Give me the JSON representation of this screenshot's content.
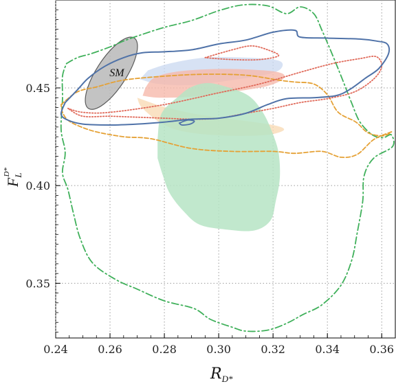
{
  "chart_data": {
    "type": "contour",
    "title": "",
    "xlabel": "R",
    "xlabel_sub": "D*",
    "ylabel": "F",
    "ylabel_sup": "D*",
    "ylabel_sub": "L",
    "xlim": [
      0.24,
      0.365
    ],
    "ylim": [
      0.322,
      0.495
    ],
    "x_ticks": [
      "0.24",
      "0.26",
      "0.28",
      "0.30",
      "0.32",
      "0.34",
      "0.36"
    ],
    "y_ticks": [
      "0.35",
      "0.40",
      "0.45"
    ],
    "grid": true,
    "annotations": [
      {
        "text": "SM",
        "x": 0.2625,
        "y": 0.456
      }
    ],
    "colors": {
      "blue": "#4f72a8",
      "red": "#e06a5a",
      "orange": "#e5a135",
      "green": "#3fb05a",
      "grey_fill": "#b8b8b8",
      "grey_stroke": "#5a5a5a",
      "fill_blue": "#c9d8f0",
      "fill_red": "#f6b9ab",
      "fill_orange": "#f8d8b0",
      "fill_green": "#b6e4c4"
    },
    "regions": [
      {
        "kind": "fill",
        "color": "fill_blue",
        "opacity": 0.75,
        "points": [
          [
            0.274,
            0.459
          ],
          [
            0.282,
            0.4625
          ],
          [
            0.295,
            0.4655
          ],
          [
            0.31,
            0.4655
          ],
          [
            0.322,
            0.464
          ],
          [
            0.323,
            0.46
          ],
          [
            0.318,
            0.457
          ],
          [
            0.305,
            0.454
          ],
          [
            0.29,
            0.4515
          ],
          [
            0.278,
            0.452
          ],
          [
            0.271,
            0.4545
          ]
        ]
      },
      {
        "kind": "fill",
        "color": "fill_red",
        "opacity": 0.8,
        "points": [
          [
            0.273,
            0.45
          ],
          [
            0.276,
            0.455
          ],
          [
            0.283,
            0.458
          ],
          [
            0.295,
            0.4595
          ],
          [
            0.31,
            0.4595
          ],
          [
            0.322,
            0.458
          ],
          [
            0.324,
            0.455
          ],
          [
            0.318,
            0.451
          ],
          [
            0.305,
            0.448
          ],
          [
            0.29,
            0.4455
          ],
          [
            0.278,
            0.445
          ],
          [
            0.272,
            0.446
          ]
        ]
      },
      {
        "kind": "fill",
        "color": "fill_orange",
        "opacity": 0.75,
        "points": [
          [
            0.27,
            0.445
          ],
          [
            0.272,
            0.4395
          ],
          [
            0.28,
            0.431
          ],
          [
            0.29,
            0.427
          ],
          [
            0.305,
            0.4255
          ],
          [
            0.318,
            0.426
          ],
          [
            0.324,
            0.4285
          ],
          [
            0.32,
            0.431
          ],
          [
            0.305,
            0.434
          ],
          [
            0.29,
            0.437
          ],
          [
            0.278,
            0.441
          ]
        ]
      },
      {
        "kind": "fill",
        "color": "fill_green",
        "opacity": 0.85,
        "points": [
          [
            0.2775,
            0.424
          ],
          [
            0.279,
            0.437
          ],
          [
            0.2855,
            0.446
          ],
          [
            0.29,
            0.4505
          ],
          [
            0.296,
            0.4525
          ],
          [
            0.303,
            0.4505
          ],
          [
            0.311,
            0.446
          ],
          [
            0.316,
            0.438
          ],
          [
            0.3195,
            0.428
          ],
          [
            0.322,
            0.417
          ],
          [
            0.3225,
            0.404
          ],
          [
            0.321,
            0.392
          ],
          [
            0.319,
            0.382
          ],
          [
            0.313,
            0.377
          ],
          [
            0.303,
            0.3775
          ],
          [
            0.293,
            0.38
          ],
          [
            0.287,
            0.387
          ],
          [
            0.282,
            0.396
          ],
          [
            0.2795,
            0.405
          ],
          [
            0.2775,
            0.414
          ]
        ]
      },
      {
        "kind": "ellipse",
        "color": "grey_fill",
        "stroke": "grey_stroke",
        "opacity": 0.85,
        "cx": 0.2605,
        "cy": 0.4575,
        "rx": 0.0055,
        "ry": 0.0215,
        "rotate": 33
      },
      {
        "kind": "curve",
        "color": "green",
        "dash": "10 4 2 4",
        "width": 1.8,
        "points": [
          [
            0.244,
            0.4625
          ],
          [
            0.248,
            0.4655
          ],
          [
            0.253,
            0.4675
          ],
          [
            0.26,
            0.471
          ],
          [
            0.265,
            0.474
          ],
          [
            0.271,
            0.477
          ],
          [
            0.28,
            0.481
          ],
          [
            0.29,
            0.4845
          ],
          [
            0.3,
            0.4895
          ],
          [
            0.309,
            0.4925
          ],
          [
            0.318,
            0.492
          ],
          [
            0.325,
            0.488
          ],
          [
            0.33,
            0.4915
          ],
          [
            0.335,
            0.488
          ],
          [
            0.338,
            0.4795
          ],
          [
            0.342,
            0.4665
          ],
          [
            0.3455,
            0.4545
          ],
          [
            0.349,
            0.442
          ],
          [
            0.352,
            0.4325
          ],
          [
            0.3565,
            0.426
          ],
          [
            0.3605,
            0.4245
          ],
          [
            0.3635,
            0.426
          ],
          [
            0.364,
            0.42
          ],
          [
            0.357,
            0.414
          ],
          [
            0.3535,
            0.405
          ],
          [
            0.353,
            0.392
          ],
          [
            0.351,
            0.376
          ],
          [
            0.349,
            0.362
          ],
          [
            0.345,
            0.349
          ],
          [
            0.338,
            0.339
          ],
          [
            0.331,
            0.334
          ],
          [
            0.325,
            0.3295
          ],
          [
            0.318,
            0.326
          ],
          [
            0.31,
            0.3255
          ],
          [
            0.305,
            0.3275
          ],
          [
            0.297,
            0.3315
          ],
          [
            0.291,
            0.337
          ],
          [
            0.28,
            0.341
          ],
          [
            0.27,
            0.347
          ],
          [
            0.262,
            0.352
          ],
          [
            0.2535,
            0.3605
          ],
          [
            0.249,
            0.373
          ],
          [
            0.2465,
            0.386
          ],
          [
            0.2445,
            0.398
          ],
          [
            0.2425,
            0.4065
          ],
          [
            0.2435,
            0.417
          ],
          [
            0.242,
            0.4285
          ],
          [
            0.2425,
            0.4445
          ],
          [
            0.2425,
            0.456
          ],
          [
            0.244,
            0.4625
          ]
        ]
      },
      {
        "kind": "curve",
        "color": "orange",
        "dash": "6 3",
        "width": 1.8,
        "points": [
          [
            0.242,
            0.4415
          ],
          [
            0.248,
            0.448
          ],
          [
            0.255,
            0.4505
          ],
          [
            0.265,
            0.454
          ],
          [
            0.28,
            0.456
          ],
          [
            0.295,
            0.457
          ],
          [
            0.31,
            0.4565
          ],
          [
            0.322,
            0.454
          ],
          [
            0.328,
            0.453
          ],
          [
            0.335,
            0.452
          ],
          [
            0.34,
            0.4465
          ],
          [
            0.344,
            0.4375
          ],
          [
            0.3505,
            0.4325
          ],
          [
            0.355,
            0.427
          ],
          [
            0.3605,
            0.4255
          ],
          [
            0.3635,
            0.4275
          ],
          [
            0.357,
            0.4235
          ],
          [
            0.351,
            0.416
          ],
          [
            0.345,
            0.4145
          ],
          [
            0.338,
            0.4175
          ],
          [
            0.328,
            0.4165
          ],
          [
            0.32,
            0.4175
          ],
          [
            0.305,
            0.4175
          ],
          [
            0.29,
            0.419
          ],
          [
            0.275,
            0.424
          ],
          [
            0.265,
            0.425
          ],
          [
            0.255,
            0.4275
          ],
          [
            0.2485,
            0.4305
          ],
          [
            0.2445,
            0.4335
          ],
          [
            0.2425,
            0.4375
          ],
          [
            0.242,
            0.4415
          ]
        ]
      },
      {
        "kind": "curve",
        "color": "red",
        "dash": "1.5 2.5",
        "width": 1.8,
        "points": [
          [
            0.2445,
            0.4395
          ],
          [
            0.25,
            0.4375
          ],
          [
            0.26,
            0.4375
          ],
          [
            0.28,
            0.4415
          ],
          [
            0.3,
            0.4475
          ],
          [
            0.315,
            0.452
          ],
          [
            0.33,
            0.458
          ],
          [
            0.342,
            0.4625
          ],
          [
            0.352,
            0.465
          ],
          [
            0.358,
            0.466
          ],
          [
            0.36,
            0.461
          ],
          [
            0.357,
            0.4545
          ],
          [
            0.35,
            0.448
          ],
          [
            0.34,
            0.4445
          ],
          [
            0.33,
            0.4425
          ],
          [
            0.32,
            0.4395
          ],
          [
            0.31,
            0.437
          ],
          [
            0.3,
            0.4345
          ],
          [
            0.29,
            0.434
          ],
          [
            0.28,
            0.4345
          ],
          [
            0.27,
            0.435
          ],
          [
            0.26,
            0.4355
          ],
          [
            0.25,
            0.4355
          ],
          [
            0.2445,
            0.4395
          ]
        ]
      },
      {
        "kind": "curve",
        "color": "red",
        "dash": "1.5 2.5",
        "width": 1.8,
        "points": [
          [
            0.295,
            0.4655
          ],
          [
            0.305,
            0.4695
          ],
          [
            0.312,
            0.4715
          ],
          [
            0.318,
            0.4695
          ],
          [
            0.322,
            0.4665
          ],
          [
            0.315,
            0.4645
          ],
          [
            0.305,
            0.4645
          ],
          [
            0.295,
            0.4655
          ]
        ]
      },
      {
        "kind": "curve",
        "color": "blue",
        "dash": "",
        "width": 2.0,
        "points": [
          [
            0.2435,
            0.4425
          ],
          [
            0.248,
            0.449
          ],
          [
            0.252,
            0.455
          ],
          [
            0.258,
            0.461
          ],
          [
            0.265,
            0.4655
          ],
          [
            0.272,
            0.468
          ],
          [
            0.28,
            0.4685
          ],
          [
            0.29,
            0.4695
          ],
          [
            0.3,
            0.4725
          ],
          [
            0.31,
            0.4745
          ],
          [
            0.32,
            0.4785
          ],
          [
            0.328,
            0.4795
          ],
          [
            0.33,
            0.476
          ],
          [
            0.34,
            0.4755
          ],
          [
            0.352,
            0.475
          ],
          [
            0.358,
            0.474
          ],
          [
            0.362,
            0.4725
          ],
          [
            0.3625,
            0.4675
          ],
          [
            0.359,
            0.46
          ],
          [
            0.354,
            0.455
          ],
          [
            0.348,
            0.449
          ],
          [
            0.343,
            0.446
          ],
          [
            0.335,
            0.445
          ],
          [
            0.325,
            0.4445
          ],
          [
            0.318,
            0.4415
          ],
          [
            0.31,
            0.437
          ],
          [
            0.3,
            0.4345
          ],
          [
            0.29,
            0.434
          ],
          [
            0.28,
            0.4325
          ],
          [
            0.27,
            0.4315
          ],
          [
            0.26,
            0.431
          ],
          [
            0.25,
            0.4315
          ],
          [
            0.2445,
            0.4335
          ],
          [
            0.242,
            0.4365
          ],
          [
            0.2435,
            0.4425
          ]
        ]
      },
      {
        "kind": "curve",
        "color": "blue",
        "dash": "",
        "width": 1.8,
        "points": [
          [
            0.2855,
            0.432
          ],
          [
            0.2885,
            0.4335
          ],
          [
            0.291,
            0.433
          ],
          [
            0.2895,
            0.4315
          ],
          [
            0.2865,
            0.431
          ],
          [
            0.2855,
            0.432
          ]
        ]
      }
    ]
  }
}
